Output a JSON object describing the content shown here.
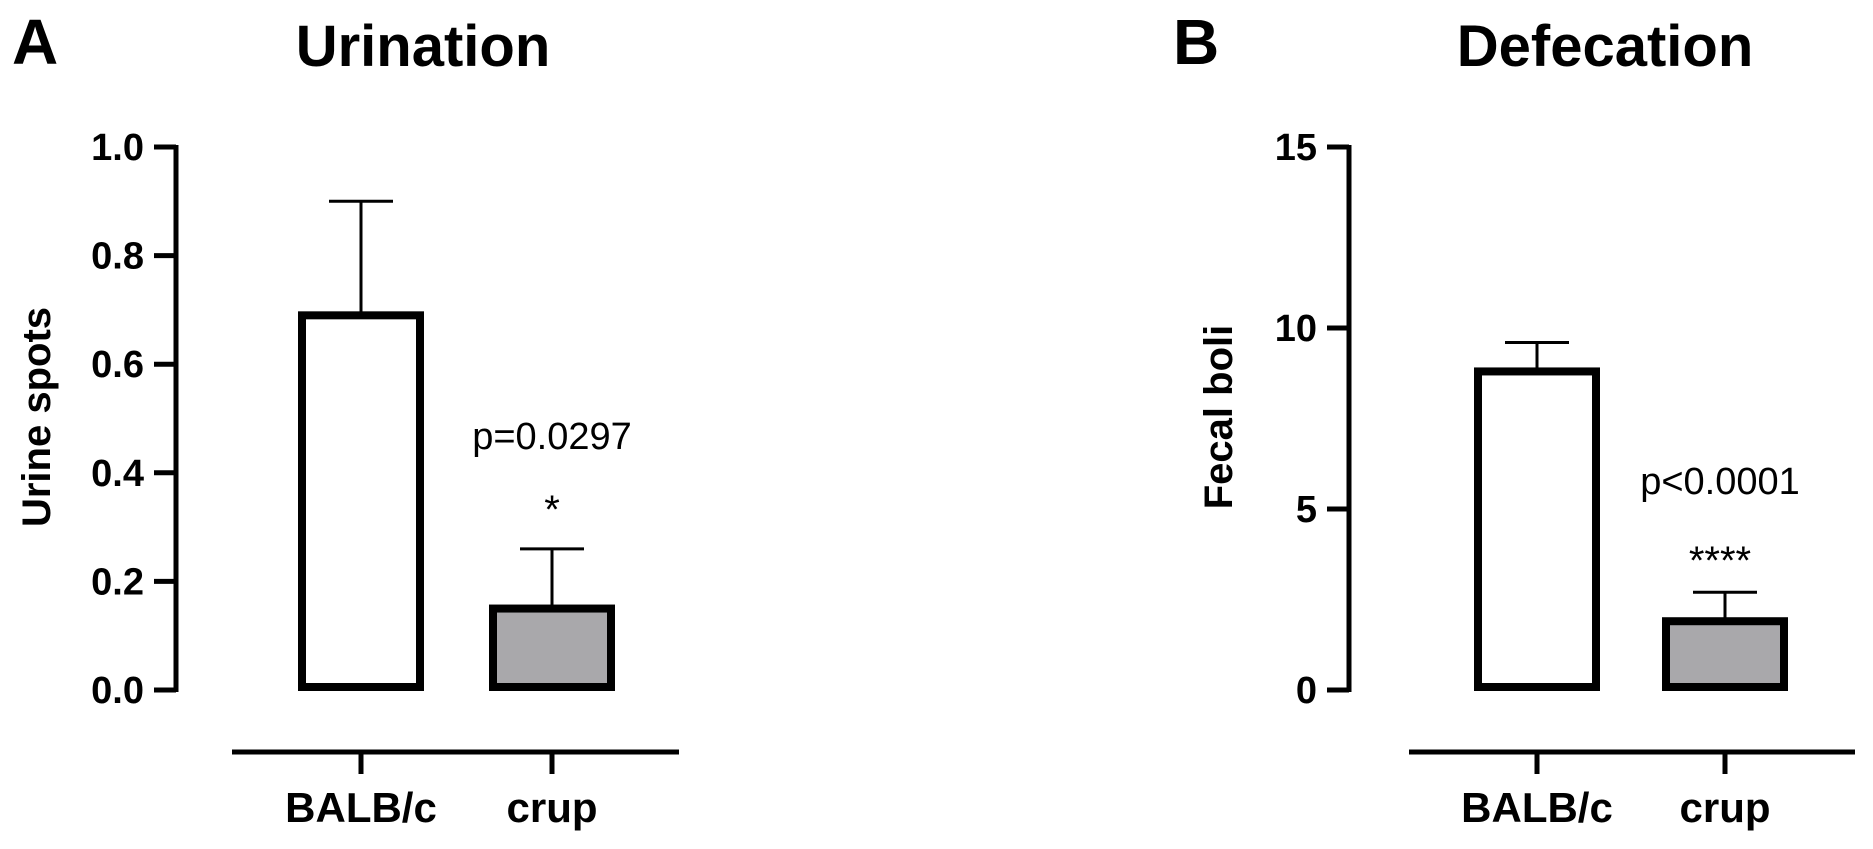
{
  "chart_data": [
    {
      "panel": "A",
      "type": "bar",
      "title": "Urination",
      "xlabel": "",
      "ylabel": "Urine spots",
      "categories": [
        "BALB/c",
        "crup"
      ],
      "values": [
        0.69,
        0.15
      ],
      "errors": [
        0.21,
        0.11
      ],
      "bar_colors": [
        "#ffffff",
        "#a9a8ab"
      ],
      "ylim": [
        0,
        1.0
      ],
      "yticks": [
        0.0,
        0.2,
        0.4,
        0.6,
        0.8,
        1.0
      ],
      "ytick_labels": [
        "0.0",
        "0.2",
        "0.4",
        "0.6",
        "0.8",
        "1.0"
      ],
      "annotation": {
        "category": "crup",
        "p_value": "p=0.0297",
        "significance": "*"
      },
      "grid": false,
      "legend": "none"
    },
    {
      "panel": "B",
      "type": "bar",
      "title": "Defecation",
      "xlabel": "",
      "ylabel": "Fecal boli",
      "categories": [
        "BALB/c",
        "crup"
      ],
      "values": [
        8.8,
        1.9
      ],
      "errors": [
        0.8,
        0.8
      ],
      "bar_colors": [
        "#ffffff",
        "#a9a8ab"
      ],
      "ylim": [
        0,
        15
      ],
      "yticks": [
        0,
        5,
        10,
        15
      ],
      "ytick_labels": [
        "0",
        "5",
        "10",
        "15"
      ],
      "annotation": {
        "category": "crup",
        "p_value": "p<0.0001",
        "significance": "****"
      },
      "grid": false,
      "legend": "none"
    }
  ]
}
